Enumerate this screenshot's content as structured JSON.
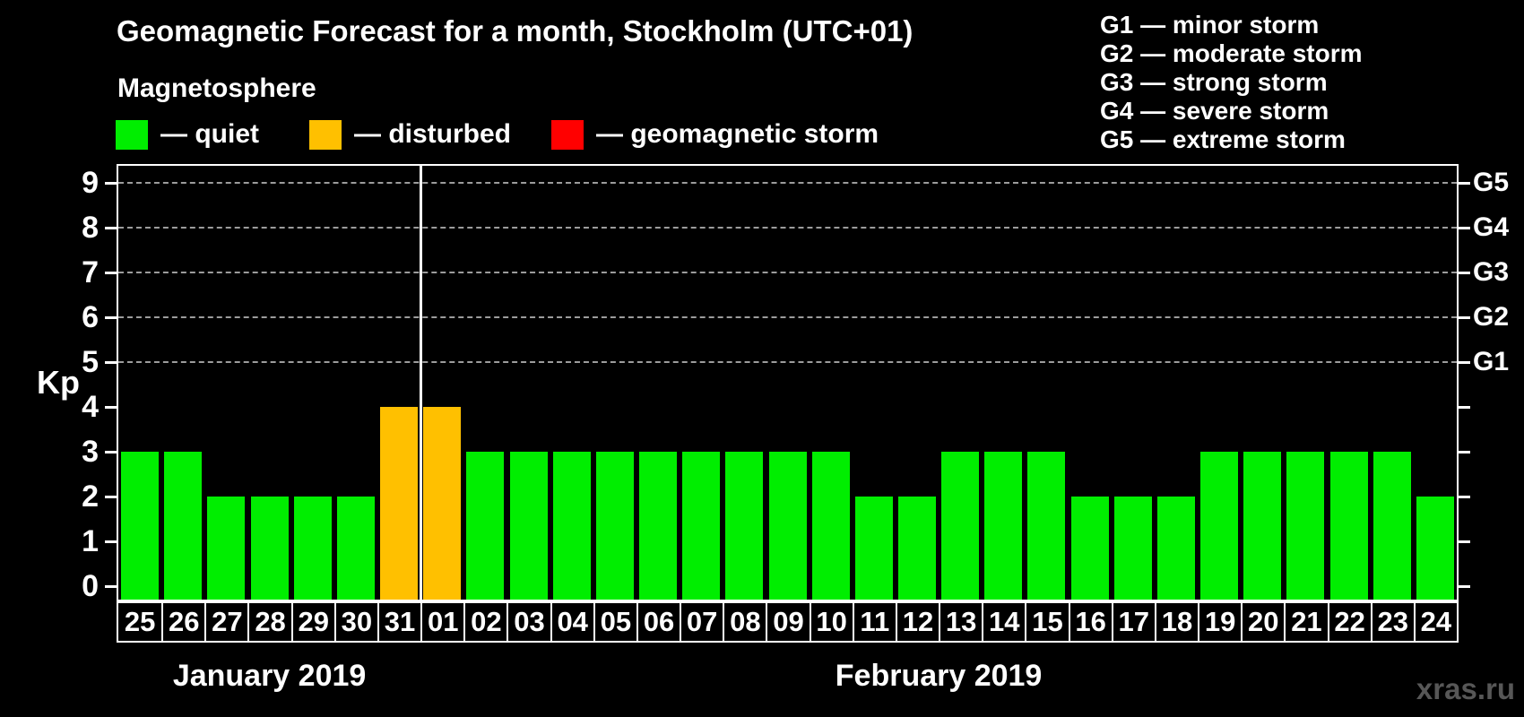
{
  "title": "Geomagnetic Forecast for a month, Stockholm (UTC+01)",
  "watermark": "xras.ru",
  "colors": {
    "quiet": "#00ee00",
    "disturbed": "#ffc000",
    "storm": "#ff0000",
    "text": "#ffffff",
    "background": "#000000"
  },
  "legend": {
    "heading": "Magnetosphere",
    "separator": "—",
    "items": [
      {
        "status": "quiet",
        "label": "quiet"
      },
      {
        "status": "disturbed",
        "label": "disturbed"
      },
      {
        "status": "storm",
        "label": "geomagnetic storm"
      }
    ]
  },
  "g_legend": {
    "separator": "—",
    "items": [
      {
        "code": "G1",
        "label": "minor storm"
      },
      {
        "code": "G2",
        "label": "moderate storm"
      },
      {
        "code": "G3",
        "label": "strong storm"
      },
      {
        "code": "G4",
        "label": "severe storm"
      },
      {
        "code": "G5",
        "label": "extreme storm"
      }
    ]
  },
  "chart_data": {
    "type": "bar",
    "title": "Geomagnetic Forecast for a month, Stockholm (UTC+01)",
    "xlabel": "",
    "ylabel": "Kp",
    "ylim": [
      0,
      9
    ],
    "grid": "dashed horizontal lines at Kp 5-9 only",
    "legend_position": "top",
    "y_ticks": [
      0,
      1,
      2,
      3,
      4,
      5,
      6,
      7,
      8,
      9
    ],
    "right_axis": [
      {
        "kp": 5,
        "label": "G1"
      },
      {
        "kp": 6,
        "label": "G2"
      },
      {
        "kp": 7,
        "label": "G3"
      },
      {
        "kp": 8,
        "label": "G4"
      },
      {
        "kp": 9,
        "label": "G5"
      }
    ],
    "categories": [
      "25",
      "26",
      "27",
      "28",
      "29",
      "30",
      "31",
      "01",
      "02",
      "03",
      "04",
      "05",
      "06",
      "07",
      "08",
      "09",
      "10",
      "11",
      "12",
      "13",
      "14",
      "15",
      "16",
      "17",
      "18",
      "19",
      "20",
      "21",
      "22",
      "23",
      "24"
    ],
    "values": [
      3,
      3,
      2,
      2,
      2,
      2,
      4,
      4,
      3,
      3,
      3,
      3,
      3,
      3,
      3,
      3,
      3,
      2,
      2,
      3,
      3,
      3,
      2,
      2,
      2,
      3,
      3,
      3,
      3,
      3,
      2
    ],
    "statuses": [
      "quiet",
      "quiet",
      "quiet",
      "quiet",
      "quiet",
      "quiet",
      "disturbed",
      "disturbed",
      "quiet",
      "quiet",
      "quiet",
      "quiet",
      "quiet",
      "quiet",
      "quiet",
      "quiet",
      "quiet",
      "quiet",
      "quiet",
      "quiet",
      "quiet",
      "quiet",
      "quiet",
      "quiet",
      "quiet",
      "quiet",
      "quiet",
      "quiet",
      "quiet",
      "quiet",
      "quiet"
    ],
    "months": [
      {
        "label": "January 2019",
        "days": 7
      },
      {
        "label": "February 2019",
        "days": 24
      }
    ]
  }
}
